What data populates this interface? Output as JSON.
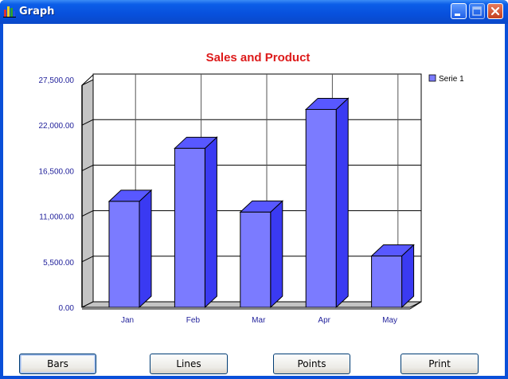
{
  "window": {
    "title": "Graph",
    "controls": {
      "minimize": "minimize-icon",
      "maximize": "maximize-icon",
      "close": "close-icon"
    }
  },
  "buttons": {
    "bars": "Bars",
    "lines": "Lines",
    "points": "Points",
    "print": "Print"
  },
  "colors": {
    "title_bar": "#0a4fd8",
    "bar_front": "#7b7bff",
    "bar_side": "#3a3af2",
    "chart_title": "#dd1b1b",
    "axis_text": "#1f1f9a"
  },
  "chart_data": {
    "type": "bar",
    "title": "Sales and Product",
    "categories": [
      "Jan",
      "Feb",
      "Mar",
      "Apr",
      "May"
    ],
    "series": [
      {
        "name": "Serie 1",
        "values": [
          12800,
          19200,
          11500,
          23900,
          6200
        ]
      }
    ],
    "y_ticks": [
      "0.00",
      "5,500.00",
      "11,000.00",
      "16,500.00",
      "22,000.00",
      "27,500.00"
    ],
    "ylim": [
      0,
      27500
    ],
    "grid": true,
    "three_d": true,
    "legend_position": "top-right"
  }
}
